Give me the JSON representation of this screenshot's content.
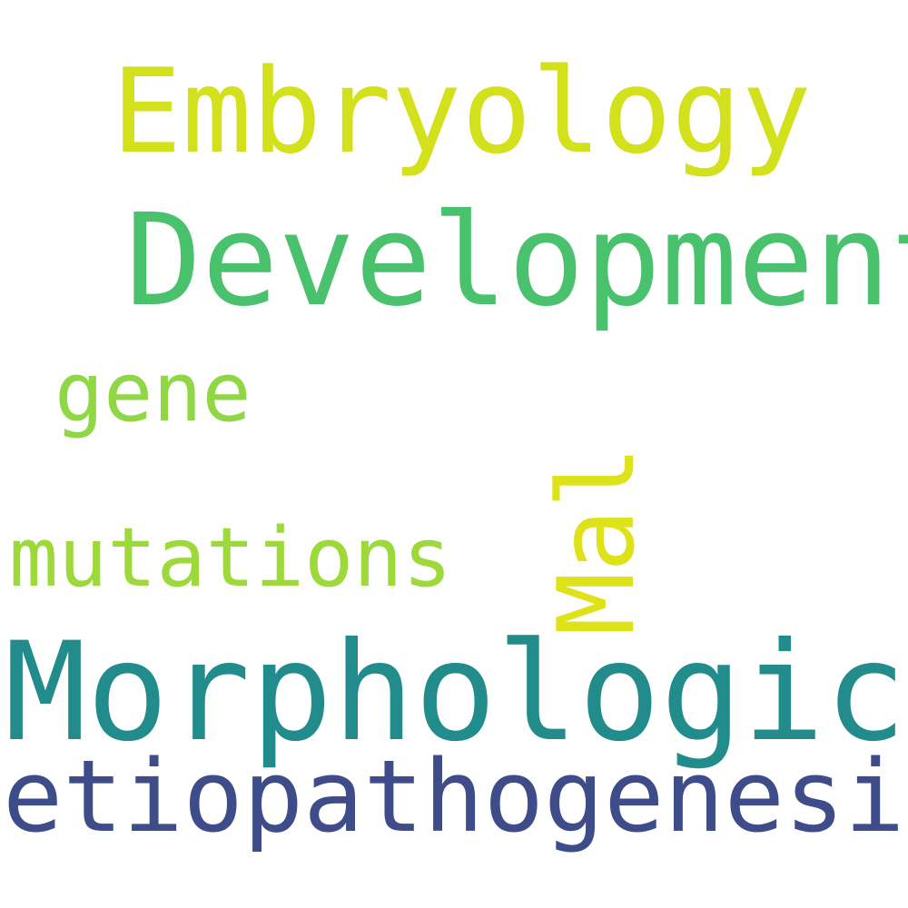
{
  "words": [
    {
      "text": "Embryology",
      "color": "#d2e11b"
    },
    {
      "text": "Development",
      "color": "#4ac16d"
    },
    {
      "text": "gene",
      "color": "#8fd744"
    },
    {
      "text": "mutations",
      "color": "#9dd93b"
    },
    {
      "text": "Mal",
      "color": "#dde318"
    },
    {
      "text": "Morphological",
      "color": "#228c8d"
    },
    {
      "text": "etiopathogenesis",
      "color": "#3e4c8a"
    }
  ]
}
